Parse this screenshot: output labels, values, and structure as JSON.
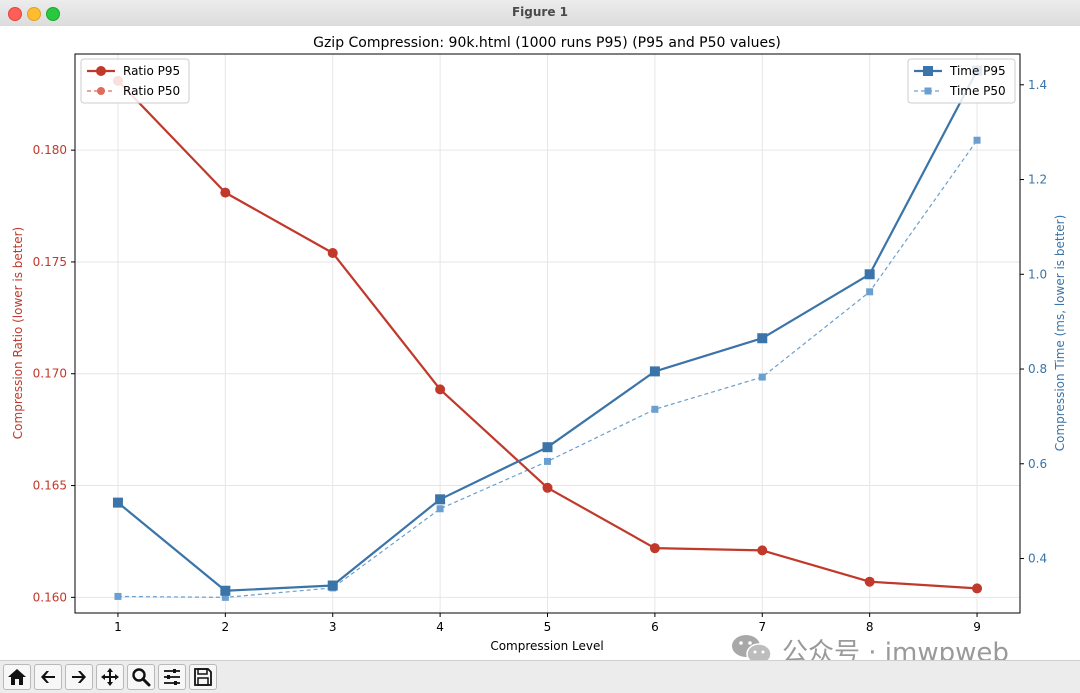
{
  "window": {
    "title": "Figure 1"
  },
  "colors": {
    "ratio": "#c0392b",
    "ratio_p50": "#e06b5b",
    "time": "#3a74a8",
    "time_p50": "#6a9fcf"
  },
  "toolbar": {
    "buttons": [
      "home-icon",
      "back-icon",
      "forward-icon",
      "pan-icon",
      "zoom-icon",
      "configure-icon",
      "save-icon"
    ]
  },
  "watermark": {
    "text": "公众号 · imwpweb",
    "icon": "wechat-icon"
  },
  "chart_data": {
    "type": "line",
    "title": "Gzip Compression: 90k.html (1000 runs P95) (P95 and P50 values)",
    "xlabel": "Compression Level",
    "ylabel_left": "Compression Ratio (lower is better)",
    "ylabel_right": "Compression Time (ms, lower is better)",
    "x": [
      1,
      2,
      3,
      4,
      5,
      6,
      7,
      8,
      9
    ],
    "xlim": [
      0.6,
      9.4
    ],
    "ylim_left": [
      0.1593,
      0.1843
    ],
    "ylim_right": [
      0.285,
      1.465
    ],
    "yticks_left": [
      "0.160",
      "0.165",
      "0.170",
      "0.175",
      "0.180"
    ],
    "yticks_left_values": [
      0.16,
      0.165,
      0.17,
      0.175,
      0.18
    ],
    "yticks_right": [
      "0.4",
      "0.6",
      "0.8",
      "1.0",
      "1.2",
      "1.4"
    ],
    "yticks_right_values": [
      0.4,
      0.6,
      0.8,
      1.0,
      1.2,
      1.4
    ],
    "grid": true,
    "legend_left": "top-left",
    "legend_right": "top-right",
    "series_left": [
      {
        "name": "Ratio P95",
        "values": [
          0.1831,
          0.1781,
          0.1754,
          0.1693,
          0.1649,
          0.1622,
          0.1621,
          0.1607,
          0.1604
        ],
        "style": "solid",
        "marker": "circle"
      },
      {
        "name": "Ratio P50",
        "values": [
          0.1831,
          0.1781,
          0.1754,
          0.1693,
          0.1649,
          0.1622,
          0.1621,
          0.1607,
          0.1604
        ],
        "style": "dashed",
        "marker": "circle"
      }
    ],
    "series_right": [
      {
        "name": "Time P95",
        "values": [
          0.518,
          0.332,
          0.343,
          0.525,
          0.635,
          0.795,
          0.865,
          1.0,
          1.43
        ],
        "style": "solid",
        "marker": "square"
      },
      {
        "name": "Time P50",
        "values": [
          0.32,
          0.318,
          0.338,
          0.505,
          0.605,
          0.715,
          0.783,
          0.963,
          1.283
        ],
        "style": "dashed",
        "marker": "square"
      }
    ]
  }
}
